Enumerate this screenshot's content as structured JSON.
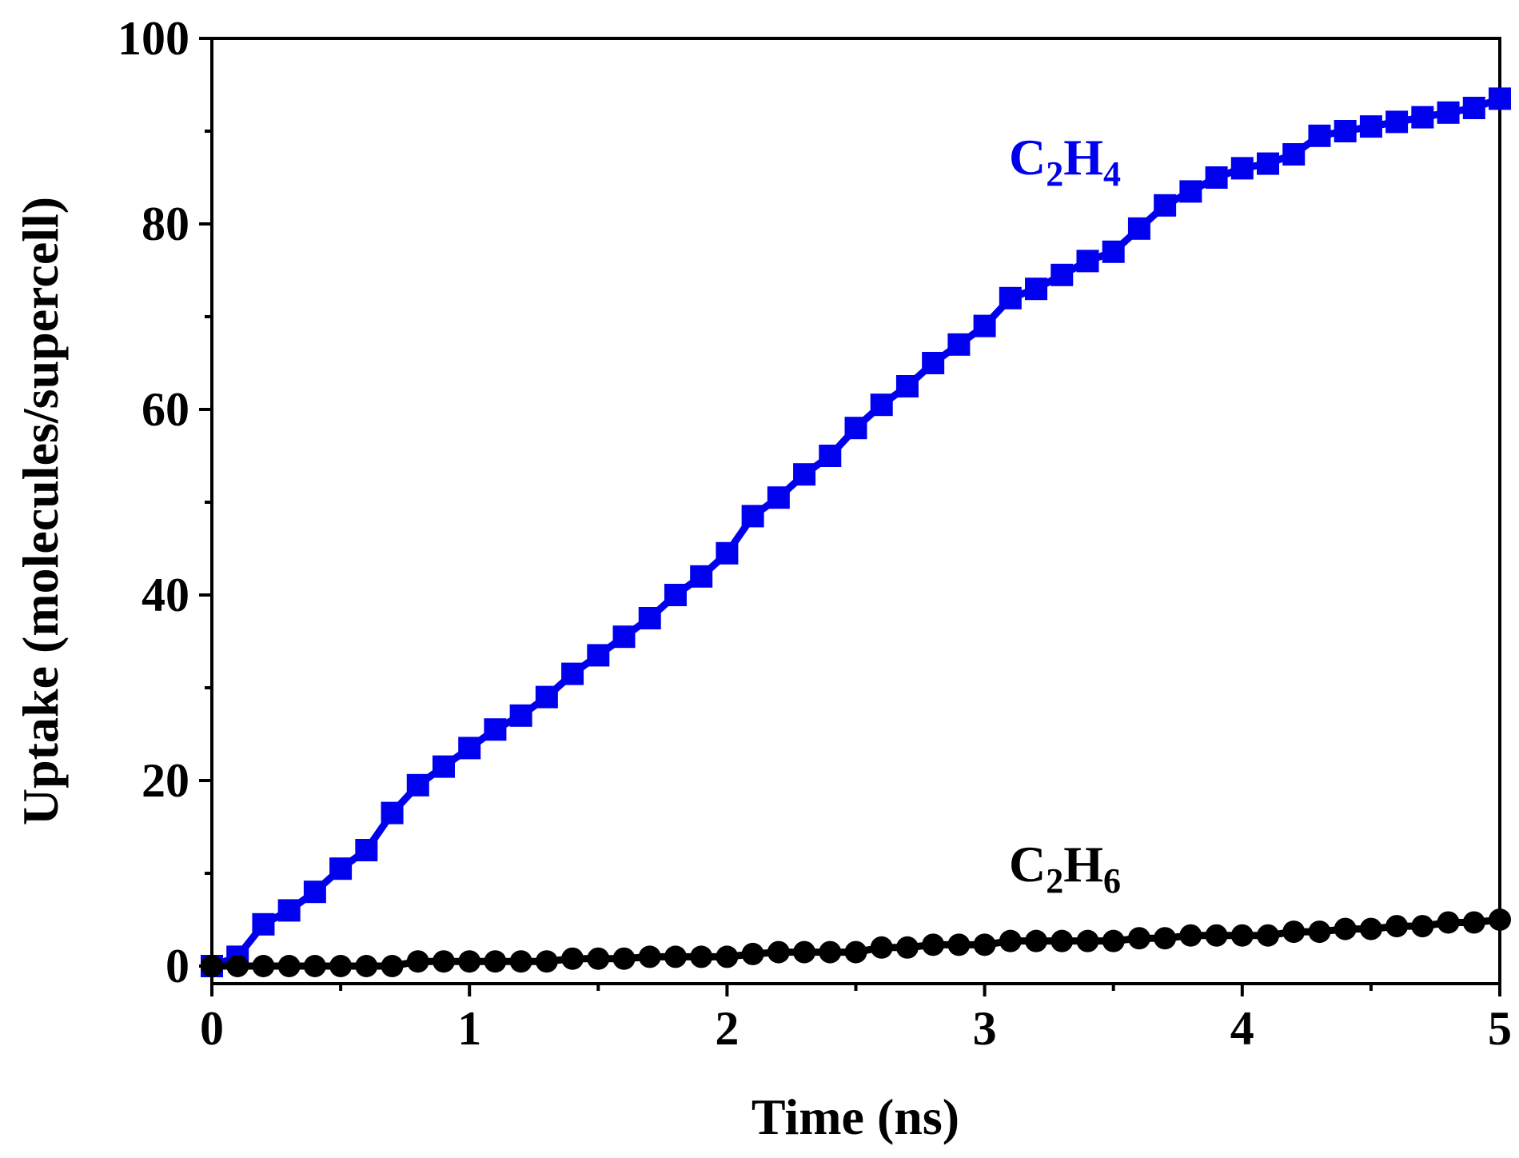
{
  "chart_data": {
    "type": "line",
    "title": "",
    "xlabel": "Time (ns)",
    "ylabel": "Uptake (molecules/supercell)",
    "xlim": [
      0,
      5
    ],
    "ylim": [
      -2,
      100
    ],
    "xticks": [
      0,
      1,
      2,
      3,
      4,
      5
    ],
    "yticks": [
      0,
      20,
      40,
      60,
      80,
      100
    ],
    "xtick_labels": [
      "0",
      "1",
      "2",
      "3",
      "4",
      "5"
    ],
    "ytick_labels": [
      "0",
      "20",
      "40",
      "60",
      "80",
      "100"
    ],
    "grid": false,
    "x": [
      0,
      0.1,
      0.2,
      0.3,
      0.4,
      0.5,
      0.6,
      0.7,
      0.8,
      0.9,
      1.0,
      1.1,
      1.2,
      1.3,
      1.4,
      1.5,
      1.6,
      1.7,
      1.8,
      1.9,
      2.0,
      2.1,
      2.2,
      2.3,
      2.4,
      2.5,
      2.6,
      2.7,
      2.8,
      2.9,
      3.0,
      3.1,
      3.2,
      3.3,
      3.4,
      3.5,
      3.6,
      3.7,
      3.8,
      3.9,
      4.0,
      4.1,
      4.2,
      4.3,
      4.4,
      4.5,
      4.6,
      4.7,
      4.8,
      4.9,
      5.0
    ],
    "series": [
      {
        "name": "C2H4",
        "label_main": "C",
        "label_sub1": "2",
        "label_mid": "H",
        "label_sub2": "4",
        "color": "#0000ee",
        "marker": "square",
        "values": [
          0,
          1,
          4.5,
          6,
          8,
          10.5,
          12.5,
          16.5,
          19.5,
          21.5,
          23.5,
          25.5,
          27,
          29,
          31.5,
          33.5,
          35.5,
          37.5,
          40,
          42,
          44.5,
          48.5,
          50.5,
          53,
          55,
          58,
          60.5,
          62.5,
          65,
          67,
          69,
          72,
          73,
          74.5,
          76,
          77,
          79.5,
          82,
          83.5,
          85,
          86,
          86.5,
          87.5,
          89.5,
          90,
          90.5,
          91,
          91.5,
          92,
          92.5,
          93.5
        ]
      },
      {
        "name": "C2H6",
        "label_main": "C",
        "label_sub1": "2",
        "label_mid": "H",
        "label_sub2": "6",
        "color": "#000000",
        "marker": "circle",
        "values": [
          0,
          0,
          0,
          0,
          0,
          0,
          0,
          0,
          0.5,
          0.5,
          0.5,
          0.5,
          0.5,
          0.5,
          0.8,
          0.8,
          0.8,
          1,
          1,
          1,
          1,
          1.3,
          1.5,
          1.5,
          1.5,
          1.5,
          2,
          2,
          2.3,
          2.3,
          2.3,
          2.7,
          2.7,
          2.7,
          2.7,
          2.7,
          3,
          3,
          3.3,
          3.3,
          3.3,
          3.3,
          3.7,
          3.7,
          4,
          4,
          4.3,
          4.3,
          4.7,
          4.7,
          5
        ]
      }
    ]
  }
}
